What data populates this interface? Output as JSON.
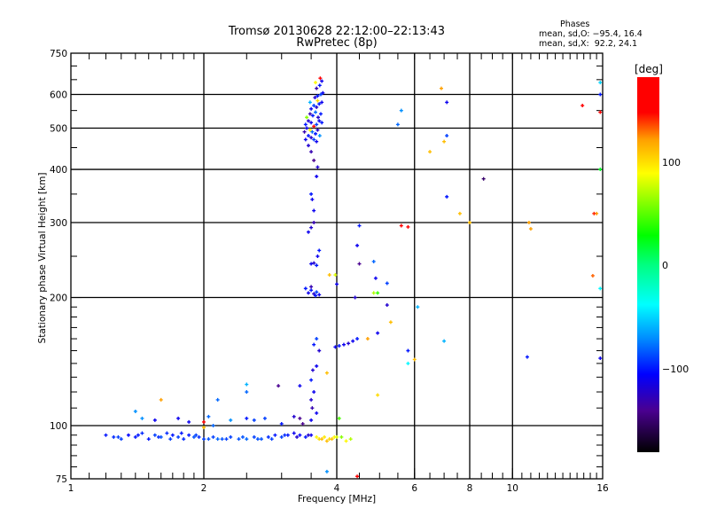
{
  "chart_data": {
    "type": "scatter",
    "title": "Tromsø 20130628 22:12:00–22:13:43",
    "subtitle": "RwPretec (8p)",
    "stats": {
      "heading": "Phases",
      "o_line": "mean, sd,O: −95.4, 16.4",
      "x_line": "mean, sd,X:  92.2, 24.1"
    },
    "xlabel": "Frequency [MHz]",
    "ylabel": "Stationary phase Virtual Height [km]",
    "xscale": "log",
    "yscale": "log",
    "xlim": [
      1,
      16
    ],
    "ylim": [
      75,
      750
    ],
    "xticks": [
      1,
      2,
      4,
      6,
      8,
      10,
      16
    ],
    "xtick_labels": [
      "1",
      "2",
      "4",
      "6",
      "8",
      "10",
      "16"
    ],
    "yticks": [
      75,
      100,
      200,
      300,
      400,
      500,
      600,
      750
    ],
    "ytick_labels": [
      "75",
      "100",
      "200",
      "300",
      "400",
      "500",
      "600",
      "750"
    ],
    "xgrid": [
      2,
      4,
      6,
      8,
      10
    ],
    "ygrid": [
      100,
      200,
      300,
      400,
      500,
      600
    ],
    "colorbar": {
      "label": "[deg]",
      "range": [
        -180,
        180
      ],
      "ticks": [
        100,
        0,
        -100
      ],
      "tick_labels": [
        "100",
        "0",
        "−100"
      ],
      "stops": [
        [
          -180,
          "#000000"
        ],
        [
          -140,
          "#4a0090"
        ],
        [
          -105,
          "#0000ff"
        ],
        [
          -70,
          "#0090ff"
        ],
        [
          -38,
          "#00ffff"
        ],
        [
          0,
          "#00ff80"
        ],
        [
          28,
          "#00ff00"
        ],
        [
          88,
          "#ffff00"
        ],
        [
          120,
          "#ffa000"
        ],
        [
          146,
          "#ff0000"
        ],
        [
          180,
          "#ff0000"
        ]
      ]
    },
    "point_columns": [
      "freq_mhz",
      "height_km",
      "phase_deg"
    ],
    "points": [
      [
        1.2,
        95,
        -100
      ],
      [
        1.25,
        94,
        -95
      ],
      [
        1.3,
        93,
        -90
      ],
      [
        1.35,
        95,
        -105
      ],
      [
        1.4,
        94,
        -100
      ],
      [
        1.45,
        96,
        -95
      ],
      [
        1.5,
        93,
        -100
      ],
      [
        1.55,
        95,
        -90
      ],
      [
        1.6,
        94,
        -85
      ],
      [
        1.65,
        96,
        -95
      ],
      [
        1.7,
        95,
        -100
      ],
      [
        1.75,
        94,
        -90
      ],
      [
        1.8,
        93,
        -95
      ],
      [
        1.85,
        95,
        -100
      ],
      [
        1.9,
        94,
        -85
      ],
      [
        1.95,
        94,
        -95
      ],
      [
        2.0,
        93,
        -90
      ],
      [
        2.05,
        93,
        -85
      ],
      [
        2.1,
        94,
        -90
      ],
      [
        2.15,
        93,
        -80
      ],
      [
        2.2,
        93,
        -85
      ],
      [
        2.3,
        94,
        -90
      ],
      [
        2.4,
        93,
        -85
      ],
      [
        2.5,
        93,
        -80
      ],
      [
        2.6,
        94,
        -90
      ],
      [
        2.7,
        93,
        -85
      ],
      [
        2.8,
        94,
        -95
      ],
      [
        2.9,
        95,
        -100
      ],
      [
        3.0,
        94,
        -90
      ],
      [
        3.1,
        95,
        -100
      ],
      [
        3.2,
        96,
        -110
      ],
      [
        3.3,
        95,
        -105
      ],
      [
        3.4,
        94,
        -100
      ],
      [
        3.5,
        95,
        -110
      ],
      [
        1.28,
        94,
        -90
      ],
      [
        1.42,
        95,
        -100
      ],
      [
        1.58,
        94,
        -95
      ],
      [
        1.68,
        93,
        -90
      ],
      [
        1.78,
        96,
        -100
      ],
      [
        1.92,
        95,
        -90
      ],
      [
        2.25,
        93,
        -90
      ],
      [
        2.45,
        94,
        -85
      ],
      [
        2.65,
        93,
        -85
      ],
      [
        2.85,
        93,
        -90
      ],
      [
        3.05,
        95,
        -95
      ],
      [
        3.25,
        94,
        -120
      ],
      [
        3.45,
        95,
        -120
      ],
      [
        3.6,
        94,
        90
      ],
      [
        3.65,
        93,
        100
      ],
      [
        3.7,
        93,
        110
      ],
      [
        3.75,
        94,
        95
      ],
      [
        3.8,
        92,
        110
      ],
      [
        3.85,
        93,
        100
      ],
      [
        3.9,
        93,
        110
      ],
      [
        3.95,
        94,
        90
      ],
      [
        4.0,
        94,
        80
      ],
      [
        4.1,
        94,
        60
      ],
      [
        4.2,
        92,
        90
      ],
      [
        4.3,
        93,
        70
      ],
      [
        1.4,
        108,
        -70
      ],
      [
        1.45,
        104,
        -70
      ],
      [
        1.55,
        103,
        -110
      ],
      [
        1.75,
        104,
        -110
      ],
      [
        1.85,
        102,
        -110
      ],
      [
        2.05,
        105,
        -80
      ],
      [
        2.1,
        100,
        -80
      ],
      [
        2.3,
        103,
        -70
      ],
      [
        2.5,
        104,
        -100
      ],
      [
        2.6,
        103,
        -90
      ],
      [
        2.75,
        104,
        -90
      ],
      [
        3.0,
        101,
        -100
      ],
      [
        3.2,
        105,
        -120
      ],
      [
        3.3,
        104,
        -140
      ],
      [
        3.35,
        101,
        -140
      ],
      [
        3.5,
        103,
        -110
      ],
      [
        3.6,
        107,
        -110
      ],
      [
        4.05,
        104,
        45
      ],
      [
        2.15,
        115,
        -80
      ],
      [
        2.5,
        120,
        -80
      ],
      [
        2.5,
        125,
        -60
      ],
      [
        2.95,
        124,
        -140
      ],
      [
        3.3,
        124,
        -110
      ],
      [
        1.6,
        115,
        120
      ],
      [
        2.0,
        102,
        150
      ],
      [
        2.0,
        99,
        110
      ],
      [
        3.52,
        110,
        -130
      ],
      [
        3.5,
        115,
        -120
      ],
      [
        3.55,
        120,
        -110
      ],
      [
        3.53,
        135,
        -120
      ],
      [
        3.5,
        128,
        -100
      ],
      [
        3.55,
        155,
        -100
      ],
      [
        3.6,
        160,
        -90
      ],
      [
        3.45,
        205,
        -110
      ],
      [
        3.5,
        208,
        -100
      ],
      [
        3.55,
        204,
        -120
      ],
      [
        3.6,
        206,
        -90
      ],
      [
        3.5,
        212,
        -130
      ],
      [
        3.65,
        203,
        -110
      ],
      [
        3.4,
        210,
        -100
      ],
      [
        3.58,
        202,
        -100
      ],
      [
        3.5,
        240,
        -110
      ],
      [
        3.55,
        241,
        -120
      ],
      [
        3.6,
        238,
        -100
      ],
      [
        3.62,
        250,
        -110
      ],
      [
        3.65,
        258,
        -100
      ],
      [
        3.45,
        285,
        -110
      ],
      [
        3.5,
        292,
        -120
      ],
      [
        3.55,
        300,
        -130
      ],
      [
        3.55,
        320,
        -110
      ],
      [
        3.52,
        340,
        -110
      ],
      [
        3.5,
        350,
        -100
      ],
      [
        3.6,
        385,
        -110
      ],
      [
        3.62,
        405,
        -120
      ],
      [
        3.55,
        420,
        -140
      ],
      [
        3.5,
        440,
        -130
      ],
      [
        3.45,
        455,
        -120
      ],
      [
        3.4,
        470,
        -110
      ],
      [
        3.45,
        480,
        -100
      ],
      [
        3.5,
        475,
        -120
      ],
      [
        3.55,
        470,
        -90
      ],
      [
        3.6,
        465,
        -110
      ],
      [
        3.38,
        490,
        -130
      ],
      [
        3.42,
        500,
        -110
      ],
      [
        3.48,
        495,
        90
      ],
      [
        3.52,
        490,
        -80
      ],
      [
        3.58,
        485,
        -100
      ],
      [
        3.62,
        495,
        -120
      ],
      [
        3.66,
        480,
        -70
      ],
      [
        3.4,
        510,
        -100
      ],
      [
        3.45,
        520,
        -120
      ],
      [
        3.5,
        515,
        -110
      ],
      [
        3.55,
        505,
        150
      ],
      [
        3.6,
        510,
        -90
      ],
      [
        3.65,
        520,
        -110
      ],
      [
        3.7,
        515,
        -100
      ],
      [
        3.42,
        530,
        60
      ],
      [
        3.48,
        540,
        -130
      ],
      [
        3.53,
        535,
        -100
      ],
      [
        3.58,
        545,
        -80
      ],
      [
        3.63,
        530,
        -120
      ],
      [
        3.68,
        540,
        -100
      ],
      [
        3.5,
        555,
        -110
      ],
      [
        3.55,
        565,
        -90
      ],
      [
        3.6,
        560,
        -120
      ],
      [
        3.65,
        570,
        -100
      ],
      [
        3.7,
        575,
        -110
      ],
      [
        3.57,
        590,
        -120
      ],
      [
        3.62,
        595,
        -100
      ],
      [
        3.68,
        600,
        -90
      ],
      [
        3.72,
        605,
        -110
      ],
      [
        3.6,
        620,
        -130
      ],
      [
        3.66,
        630,
        -100
      ],
      [
        3.7,
        645,
        -110
      ],
      [
        3.58,
        640,
        90
      ],
      [
        3.67,
        655,
        150
      ],
      [
        3.62,
        580,
        100
      ],
      [
        3.48,
        575,
        -60
      ],
      [
        3.97,
        226,
        80
      ],
      [
        3.85,
        226,
        110
      ],
      [
        4.0,
        215,
        -110
      ],
      [
        4.5,
        240,
        -140
      ],
      [
        4.45,
        265,
        -110
      ],
      [
        4.5,
        295,
        -100
      ],
      [
        4.4,
        200,
        -120
      ],
      [
        4.85,
        243,
        -80
      ],
      [
        4.9,
        222,
        -110
      ],
      [
        4.85,
        205,
        70
      ],
      [
        4.95,
        205,
        40
      ],
      [
        5.2,
        216,
        -90
      ],
      [
        5.2,
        192,
        -120
      ],
      [
        5.3,
        175,
        110
      ],
      [
        4.95,
        165,
        -110
      ],
      [
        4.7,
        160,
        120
      ],
      [
        5.8,
        150,
        -100
      ],
      [
        6.0,
        143,
        110
      ],
      [
        6.1,
        190,
        -60
      ],
      [
        5.8,
        140,
        -40
      ],
      [
        5.6,
        295,
        170
      ],
      [
        5.8,
        293,
        160
      ],
      [
        5.6,
        550,
        -70
      ],
      [
        5.5,
        510,
        -80
      ],
      [
        6.5,
        440,
        110
      ],
      [
        6.9,
        620,
        120
      ],
      [
        7.1,
        575,
        -110
      ],
      [
        7.1,
        480,
        -90
      ],
      [
        7.0,
        465,
        110
      ],
      [
        7.1,
        345,
        -100
      ],
      [
        7.0,
        158,
        -60
      ],
      [
        7.6,
        315,
        110
      ],
      [
        8.0,
        300,
        110
      ],
      [
        8.6,
        380,
        -150
      ],
      [
        10.9,
        300,
        120
      ],
      [
        11.0,
        290,
        120
      ],
      [
        10.8,
        145,
        -100
      ],
      [
        14.4,
        565,
        150
      ],
      [
        15.5,
        315,
        120
      ],
      [
        15.3,
        315,
        140
      ],
      [
        15.8,
        545,
        170
      ],
      [
        15.8,
        640,
        -50
      ],
      [
        15.8,
        600,
        -100
      ],
      [
        15.8,
        400,
        20
      ],
      [
        15.2,
        225,
        130
      ],
      [
        15.8,
        210,
        -40
      ],
      [
        15.8,
        144,
        -110
      ],
      [
        3.8,
        78,
        -70
      ],
      [
        4.45,
        76,
        170
      ],
      [
        3.97,
        153,
        -110
      ],
      [
        4.05,
        154,
        -100
      ],
      [
        4.15,
        155,
        -110
      ],
      [
        4.25,
        156,
        -120
      ],
      [
        4.35,
        158,
        -110
      ],
      [
        4.45,
        160,
        -100
      ],
      [
        3.8,
        133,
        110
      ],
      [
        4.95,
        118,
        100
      ],
      [
        3.6,
        138,
        -110
      ],
      [
        3.65,
        150,
        -120
      ]
    ]
  }
}
